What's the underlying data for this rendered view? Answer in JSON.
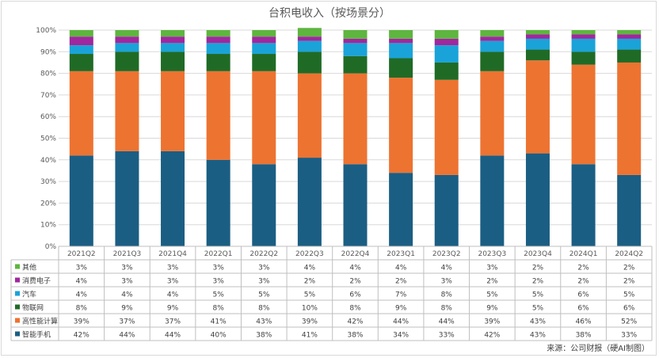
{
  "chart_data": {
    "type": "bar",
    "stacked": true,
    "percent": true,
    "title": "台积电收入（按场景分）",
    "categories": [
      "2021Q2",
      "2021Q3",
      "2021Q4",
      "2022Q1",
      "2022Q2",
      "2022Q3",
      "2022Q4",
      "2023Q1",
      "2023Q2",
      "2023Q3",
      "2023Q4",
      "2024Q1",
      "2024Q2"
    ],
    "y_ticks": [
      "0%",
      "10%",
      "20%",
      "30%",
      "40%",
      "50%",
      "60%",
      "70%",
      "80%",
      "90%",
      "100%"
    ],
    "ylim": [
      0,
      100
    ],
    "series": [
      {
        "name": "智能手机",
        "color": "#1b5e83",
        "values": [
          42,
          44,
          44,
          40,
          38,
          41,
          38,
          34,
          33,
          42,
          43,
          38,
          33
        ],
        "labels": [
          "42%",
          "44%",
          "44%",
          "40%",
          "38%",
          "41%",
          "38%",
          "34%",
          "33%",
          "42%",
          "43%",
          "38%",
          "33%"
        ]
      },
      {
        "name": "高性能计算",
        "color": "#ed7331",
        "values": [
          39,
          37,
          37,
          41,
          43,
          39,
          42,
          44,
          44,
          39,
          43,
          46,
          52
        ],
        "labels": [
          "39%",
          "37%",
          "37%",
          "41%",
          "43%",
          "39%",
          "42%",
          "44%",
          "44%",
          "39%",
          "43%",
          "46%",
          "52%"
        ]
      },
      {
        "name": "物联网",
        "color": "#1f6b26",
        "values": [
          8,
          9,
          9,
          8,
          8,
          10,
          8,
          9,
          8,
          9,
          5,
          6,
          6
        ],
        "labels": [
          "8%",
          "9%",
          "9%",
          "8%",
          "8%",
          "10%",
          "8%",
          "9%",
          "8%",
          "9%",
          "5%",
          "6%",
          "6%"
        ]
      },
      {
        "name": "汽车",
        "color": "#1aa3d8",
        "values": [
          4,
          4,
          4,
          5,
          5,
          5,
          6,
          7,
          8,
          5,
          5,
          6,
          5
        ],
        "labels": [
          "4%",
          "4%",
          "4%",
          "5%",
          "5%",
          "5%",
          "6%",
          "7%",
          "8%",
          "5%",
          "5%",
          "6%",
          "5%"
        ]
      },
      {
        "name": "消费电子",
        "color": "#a0279e",
        "values": [
          4,
          3,
          3,
          3,
          3,
          2,
          2,
          2,
          3,
          2,
          2,
          2,
          2
        ],
        "labels": [
          "4%",
          "3%",
          "3%",
          "3%",
          "3%",
          "2%",
          "2%",
          "2%",
          "3%",
          "2%",
          "2%",
          "2%",
          "2%"
        ]
      },
      {
        "name": "其他",
        "color": "#5eb53f",
        "values": [
          3,
          3,
          3,
          3,
          3,
          4,
          4,
          4,
          4,
          3,
          2,
          2,
          2
        ],
        "labels": [
          "3%",
          "3%",
          "3%",
          "3%",
          "3%",
          "4%",
          "4%",
          "4%",
          "4%",
          "3%",
          "2%",
          "2%",
          "2%"
        ]
      }
    ],
    "table_row_order": [
      "其他",
      "消费电子",
      "汽车",
      "物联网",
      "高性能计算",
      "智能手机"
    ],
    "source": "来源：公司财报（硬AI制图）"
  }
}
